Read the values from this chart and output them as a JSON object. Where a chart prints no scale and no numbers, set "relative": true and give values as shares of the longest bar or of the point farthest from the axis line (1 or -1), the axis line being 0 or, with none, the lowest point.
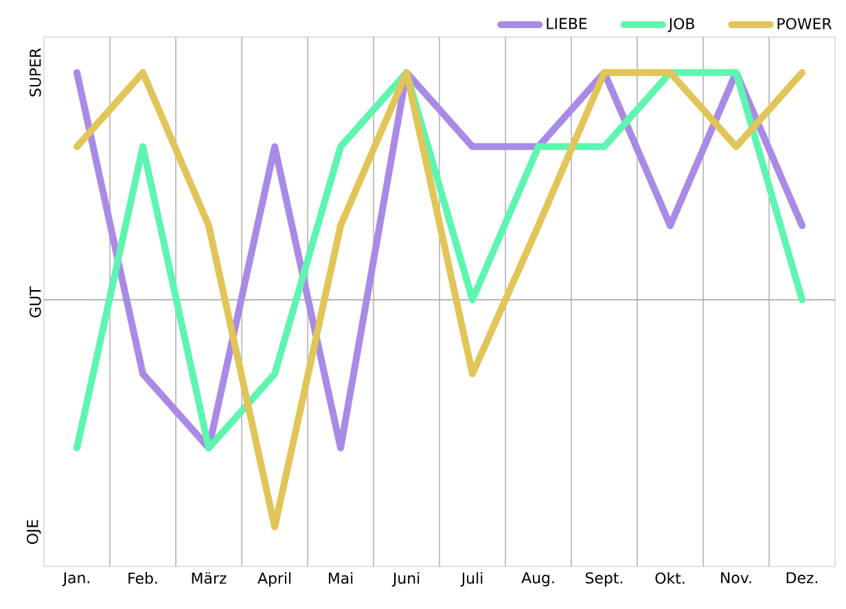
{
  "chart_data": {
    "type": "line",
    "relative": true,
    "categories": [
      "Jan.",
      "Feb.",
      "März",
      "April",
      "Mai",
      "Juni",
      "Juli",
      "Aug.",
      "Sept.",
      "Okt.",
      "Nov.",
      "Dez."
    ],
    "series": [
      {
        "name": "LIEBE",
        "color": "#a98ae6",
        "values": [
          1,
          0.39,
          0.24,
          0.85,
          0.24,
          1,
          0.85,
          0.85,
          1,
          0.69,
          1,
          0.69
        ]
      },
      {
        "name": "JOB",
        "color": "#5ef5b0",
        "values": [
          0.24,
          0.85,
          0.24,
          0.39,
          0.85,
          1,
          0.54,
          0.85,
          0.85,
          1,
          1,
          0.54
        ]
      },
      {
        "name": "POWER",
        "color": "#e2c558",
        "values": [
          0.85,
          1,
          0.69,
          0.08,
          0.69,
          1,
          0.39,
          0.69,
          1,
          1,
          0.85,
          1
        ]
      }
    ],
    "annotations": [
      "OJE",
      "GUT",
      "SUPER"
    ],
    "ref_lines": [
      {
        "axis": "y",
        "value": 0.54,
        "color": "#aaaaaa"
      }
    ],
    "grid": "x",
    "legend": "top right",
    "marker": "none",
    "line_style": "solid"
  }
}
